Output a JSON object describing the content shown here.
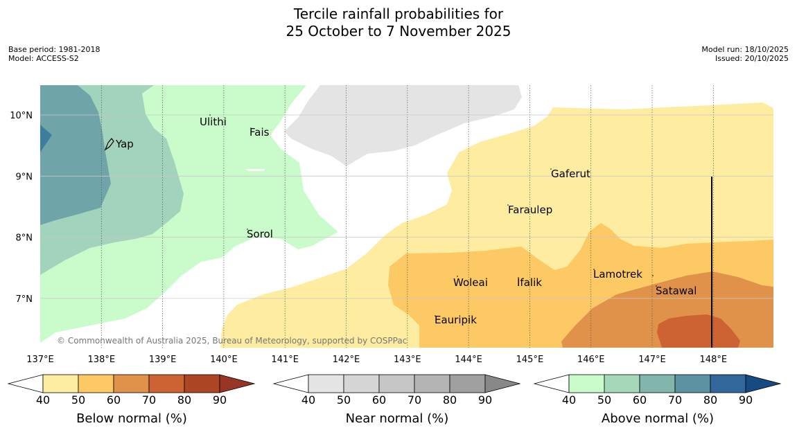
{
  "title_line1": "Tercile rainfall probabilities for",
  "title_line2": "25 October to 7 November 2025",
  "meta_left": {
    "base_period": "Base period: 1981-2018",
    "model": "Model: ACCESS-S2"
  },
  "meta_right": {
    "model_run": "Model run: 18/10/2025",
    "issued": "Issued: 20/10/2025"
  },
  "map": {
    "lon_ticks": [
      "137°E",
      "138°E",
      "139°E",
      "140°E",
      "141°E",
      "142°E",
      "143°E",
      "144°E",
      "145°E",
      "146°E",
      "147°E",
      "148°E"
    ],
    "lat_ticks": [
      "10°N",
      "9°N",
      "8°N",
      "7°N"
    ],
    "places": {
      "yap": "Yap",
      "ulithi": "Ulithi",
      "fais": "Fais",
      "sorol": "Sorol",
      "gaferut": "Gaferut",
      "faraulep": "Faraulep",
      "woleai": "Woleai",
      "ifalik": "Ifalik",
      "lamotrek": "Lamotrek",
      "satawal": "Satawal",
      "eauripik": "Eauripik"
    },
    "copyright": "© Commonwealth of Australia 2025, Bureau of Meteorology, supported by COSPPac"
  },
  "legend": {
    "below": {
      "label": "Below normal (%)",
      "colors": [
        "#fdeda0",
        "#fdc965",
        "#e0924a",
        "#cd6333",
        "#ad4625",
        "#983524"
      ]
    },
    "near": {
      "label": "Near normal (%)",
      "colors": [
        "#e5e5e5",
        "#d6d6d6",
        "#c6c6c6",
        "#b4b4b4",
        "#a0a0a0",
        "#888888"
      ]
    },
    "above": {
      "label": "Above normal (%)",
      "colors": [
        "#c9fbcb",
        "#a5d8b9",
        "#82b6ad",
        "#5b93a3",
        "#31679a",
        "#174a80"
      ]
    },
    "ticks": [
      "40",
      "50",
      "60",
      "70",
      "80",
      "90"
    ]
  }
}
